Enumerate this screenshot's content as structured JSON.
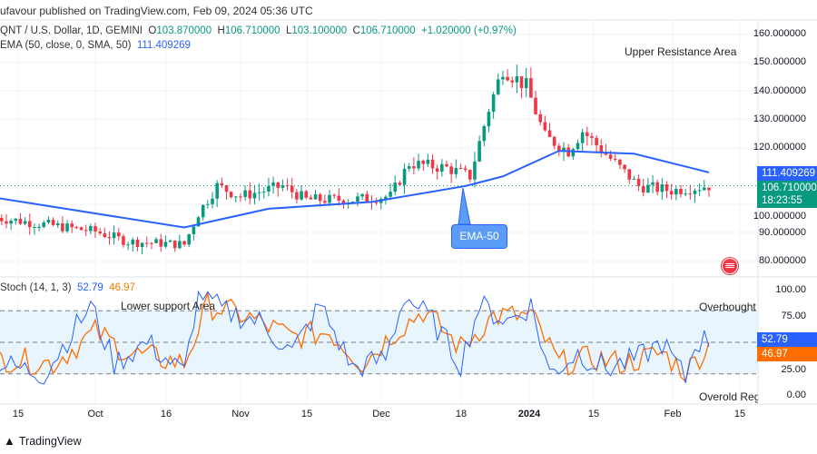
{
  "header": {
    "published": "ufavour published on TradingView.com, Feb 09, 2024 05:36 UTC"
  },
  "legend": {
    "symbol": "QNT / U.S. Dollar, 1D, GEMINI",
    "o_label": "O",
    "o": "103.870000",
    "h_label": "H",
    "h": "106.710000",
    "l_label": "L",
    "l": "103.100000",
    "c_label": "C",
    "c": "106.710000",
    "change": "+1.020000 (+0.97%)",
    "ema_label": "EMA (50, close, 0, SMA, 50)",
    "ema_value": "111.409269"
  },
  "price_axis": {
    "ticks": [
      "160.000000",
      "150.000000",
      "140.000000",
      "130.000000",
      "120.000000",
      "100.000000",
      "90.000000",
      "80.000000"
    ],
    "ema_tag": "111.409269",
    "price_tag": "106.710000",
    "countdown": "18:23:55"
  },
  "annotations": {
    "upper": "Upper Resistance Area",
    "lower": "Lower support Area",
    "ema_callout": "EMA-50",
    "overbought": "Overbought I",
    "oversold": "Overold Regi"
  },
  "stoch": {
    "label": "Stoch (14, 1, 3)",
    "k": "52.79",
    "d": "46.97",
    "ticks": [
      "100.00",
      "75.00",
      "25.00",
      "0.00"
    ]
  },
  "time_axis": [
    "15",
    "Oct",
    "16",
    "Nov",
    "15",
    "Dec",
    "18",
    "2024",
    "15",
    "Feb",
    "15"
  ],
  "footer": {
    "brand": "TradingView"
  },
  "colors": {
    "up": "#089981",
    "down": "#f23645",
    "ema": "#2962ff",
    "stoch_k": "#2962ff",
    "stoch_d": "#ff6d00",
    "band": "#e3f2fd"
  },
  "chart_data": {
    "type": "candlestick",
    "ylim": [
      75,
      162
    ],
    "price_keypoints": [
      [
        "2023-09-10",
        95.4
      ],
      [
        "2023-10-01",
        90.6
      ],
      [
        "2023-10-08",
        87
      ],
      [
        "2023-10-20",
        86
      ],
      [
        "2023-10-23",
        97
      ],
      [
        "2023-10-27",
        106.6
      ],
      [
        "2023-11-01",
        103
      ],
      [
        "2023-11-10",
        106.6
      ],
      [
        "2023-11-15",
        101.8
      ],
      [
        "2023-11-25",
        101.8
      ],
      [
        "2023-12-03",
        103
      ],
      [
        "2023-12-07",
        114.6
      ],
      [
        "2023-12-15",
        113
      ],
      [
        "2023-12-20",
        110
      ],
      [
        "2023-12-24",
        133.8
      ],
      [
        "2023-12-27",
        148
      ],
      [
        "2024-01-01",
        141.8
      ],
      [
        "2024-01-05",
        124
      ],
      [
        "2024-01-10",
        119
      ],
      [
        "2024-01-13",
        126
      ],
      [
        "2024-01-20",
        114.6
      ],
      [
        "2024-01-25",
        106.6
      ],
      [
        "2024-02-01",
        105
      ],
      [
        "2024-02-09",
        106.71
      ]
    ],
    "ema50": [
      [
        "2023-09-10",
        102.4
      ],
      [
        "2023-10-20",
        92
      ],
      [
        "2023-11-07",
        98.6
      ],
      [
        "2023-11-29",
        101
      ],
      [
        "2023-12-19",
        106.6
      ],
      [
        "2023-12-27",
        110
      ],
      [
        "2024-01-08",
        119
      ],
      [
        "2024-01-24",
        118
      ],
      [
        "2024-02-09",
        111.41
      ]
    ],
    "stoch_k": [
      [
        "2023-09-10",
        30
      ],
      [
        "2023-09-20",
        20
      ],
      [
        "2023-09-30",
        85
      ],
      [
        "2023-10-05",
        30
      ],
      [
        "2023-10-12",
        50
      ],
      [
        "2023-10-20",
        20
      ],
      [
        "2023-10-23",
        100
      ],
      [
        "2023-10-28",
        80
      ],
      [
        "2023-11-05",
        70
      ],
      [
        "2023-11-12",
        40
      ],
      [
        "2023-11-18",
        85
      ],
      [
        "2023-11-25",
        25
      ],
      [
        "2023-12-02",
        35
      ],
      [
        "2023-12-06",
        95
      ],
      [
        "2023-12-12",
        70
      ],
      [
        "2023-12-18",
        30
      ],
      [
        "2023-12-22",
        85
      ],
      [
        "2023-12-28",
        70
      ],
      [
        "2024-01-02",
        85
      ],
      [
        "2024-01-06",
        20
      ],
      [
        "2024-01-12",
        40
      ],
      [
        "2024-01-18",
        25
      ],
      [
        "2024-01-25",
        35
      ],
      [
        "2024-01-30",
        50
      ],
      [
        "2024-02-04",
        15
      ],
      [
        "2024-02-06",
        50
      ],
      [
        "2024-02-09",
        52.79
      ]
    ],
    "stoch_d": [
      [
        "2023-09-10",
        35
      ],
      [
        "2023-09-22",
        30
      ],
      [
        "2023-10-01",
        60
      ],
      [
        "2023-10-08",
        40
      ],
      [
        "2023-10-20",
        30
      ],
      [
        "2023-10-25",
        85
      ],
      [
        "2023-11-02",
        75
      ],
      [
        "2023-11-12",
        55
      ],
      [
        "2023-11-20",
        60
      ],
      [
        "2023-11-27",
        30
      ],
      [
        "2023-12-04",
        60
      ],
      [
        "2023-12-10",
        80
      ],
      [
        "2023-12-18",
        45
      ],
      [
        "2023-12-25",
        75
      ],
      [
        "2024-01-02",
        75
      ],
      [
        "2024-01-08",
        30
      ],
      [
        "2024-01-15",
        35
      ],
      [
        "2024-01-22",
        30
      ],
      [
        "2024-01-30",
        40
      ],
      [
        "2024-02-04",
        22
      ],
      [
        "2024-02-09",
        46.97
      ]
    ]
  }
}
